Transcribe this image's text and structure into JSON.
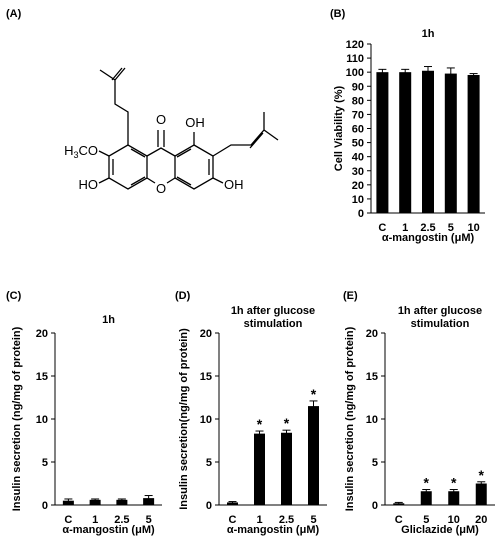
{
  "panels": {
    "A": {
      "label": "(A)"
    },
    "B": {
      "label": "(B)"
    },
    "C": {
      "label": "(C)"
    },
    "D": {
      "label": "(D)"
    },
    "E": {
      "label": "(E)"
    }
  },
  "molecule": {
    "atoms": {
      "o_carbonyl": "O",
      "oh_top": "OH",
      "methoxy": "H3CO",
      "oh_left": "HO",
      "o_ring": "O",
      "oh_right": "OH"
    }
  },
  "chart_data": [
    {
      "panel": "B",
      "type": "bar",
      "title": "1h",
      "categories": [
        "C",
        "1",
        "2.5",
        "5",
        "10"
      ],
      "values": [
        100,
        100,
        101,
        99,
        98
      ],
      "errors": [
        2,
        2,
        3,
        4,
        1
      ],
      "sig": [
        false,
        false,
        false,
        false,
        false
      ],
      "xlabel": "α-mangostin (μM)",
      "ylabel": "Cell Viability (%)",
      "ylim": [
        0,
        120
      ],
      "yticks": [
        0,
        10,
        20,
        30,
        40,
        50,
        60,
        70,
        80,
        90,
        100,
        110,
        120
      ],
      "bar_color": "#000000",
      "grid": false
    },
    {
      "panel": "C",
      "type": "bar",
      "title": "1h",
      "categories": [
        "C",
        "1",
        "2.5",
        "5"
      ],
      "values": [
        0.5,
        0.6,
        0.6,
        0.8
      ],
      "errors": [
        0.2,
        0.1,
        0.1,
        0.3
      ],
      "sig": [
        false,
        false,
        false,
        false
      ],
      "xlabel": "α-mangostin (μM)",
      "ylabel": "Insulin secretion (ng/mg of protein)",
      "ylim": [
        0,
        20
      ],
      "yticks": [
        0,
        5,
        10,
        15,
        20
      ],
      "bar_color": "#000000",
      "grid": false
    },
    {
      "panel": "D",
      "type": "bar",
      "title": "1h after glucose\nstimulation",
      "categories": [
        "C",
        "1",
        "2.5",
        "5"
      ],
      "values": [
        0.3,
        8.3,
        8.4,
        11.5
      ],
      "errors": [
        0.1,
        0.3,
        0.3,
        0.6
      ],
      "sig": [
        false,
        true,
        true,
        true
      ],
      "xlabel": "α-mangostin (μM)",
      "ylabel": "Insulin secretion(ng/mg of protein)",
      "ylim": [
        0,
        20
      ],
      "yticks": [
        0,
        5,
        10,
        15,
        20
      ],
      "bar_color": "#000000",
      "grid": false
    },
    {
      "panel": "E",
      "type": "bar",
      "title": "1h after glucose\nstimulation",
      "categories": [
        "C",
        "5",
        "10",
        "20"
      ],
      "values": [
        0.2,
        1.6,
        1.6,
        2.5
      ],
      "errors": [
        0.1,
        0.2,
        0.2,
        0.2
      ],
      "sig": [
        false,
        true,
        true,
        true
      ],
      "xlabel": "Gliclazide (μM)",
      "ylabel": "Insulin secretion (ng/mg of protein)",
      "ylim": [
        0,
        20
      ],
      "yticks": [
        0,
        5,
        10,
        15,
        20
      ],
      "bar_color": "#000000",
      "grid": false
    }
  ]
}
